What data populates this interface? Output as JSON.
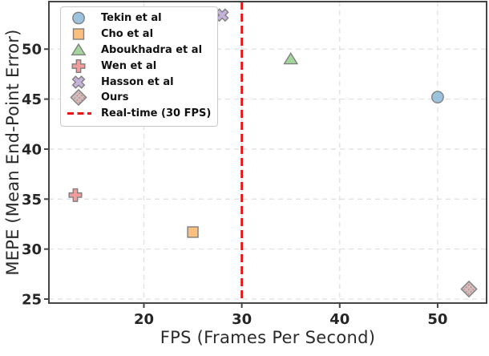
{
  "chart_data": {
    "type": "scatter",
    "title": "",
    "xlabel": "FPS (Frames Per Second)",
    "ylabel": "MEPE (Mean End-Point Error)",
    "xlim": [
      10.3,
      55.0
    ],
    "ylim": [
      24.6,
      54.75
    ],
    "xticks": [
      20,
      30,
      40,
      50
    ],
    "yticks": [
      25,
      30,
      35,
      40,
      45,
      50
    ],
    "grid": true,
    "legend_position": "upper-left",
    "series": [
      {
        "name": "Tekin et al",
        "marker": "circle",
        "fill": "#9cc3de",
        "x": 50.0,
        "y": 45.2
      },
      {
        "name": "Cho et al",
        "marker": "square",
        "fill": "#fbc080",
        "x": 25.0,
        "y": 31.7
      },
      {
        "name": "Aboukhadra et al",
        "marker": "triangle",
        "fill": "#a3d49c",
        "x": 35.0,
        "y": 49.0
      },
      {
        "name": "Wen et al",
        "marker": "plus",
        "fill": "#f09b9c",
        "x": 13.0,
        "y": 35.4
      },
      {
        "name": "Hasson et al",
        "marker": "x",
        "fill": "#c4b2d9",
        "x": 28.0,
        "y": 53.4
      },
      {
        "name": "Ours",
        "marker": "diamond",
        "fill": "#cfbdbd",
        "hatch_dot_color": "#cc5f5f",
        "x": 53.2,
        "y": 26.0
      }
    ],
    "reference_line": {
      "label": "Real-time (30 FPS)",
      "x": 30,
      "color": "#ee1111",
      "style": "dashed"
    },
    "colors": {
      "marker_edge": "#7f7f7f",
      "axis": "#454545",
      "grid": "#e1e1e1",
      "tick_label": "#262626",
      "axis_label": "#2b2b2b",
      "legend_border": "#c9c9c9",
      "legend_bg": "#ffffff",
      "background": "#ffffff"
    }
  }
}
